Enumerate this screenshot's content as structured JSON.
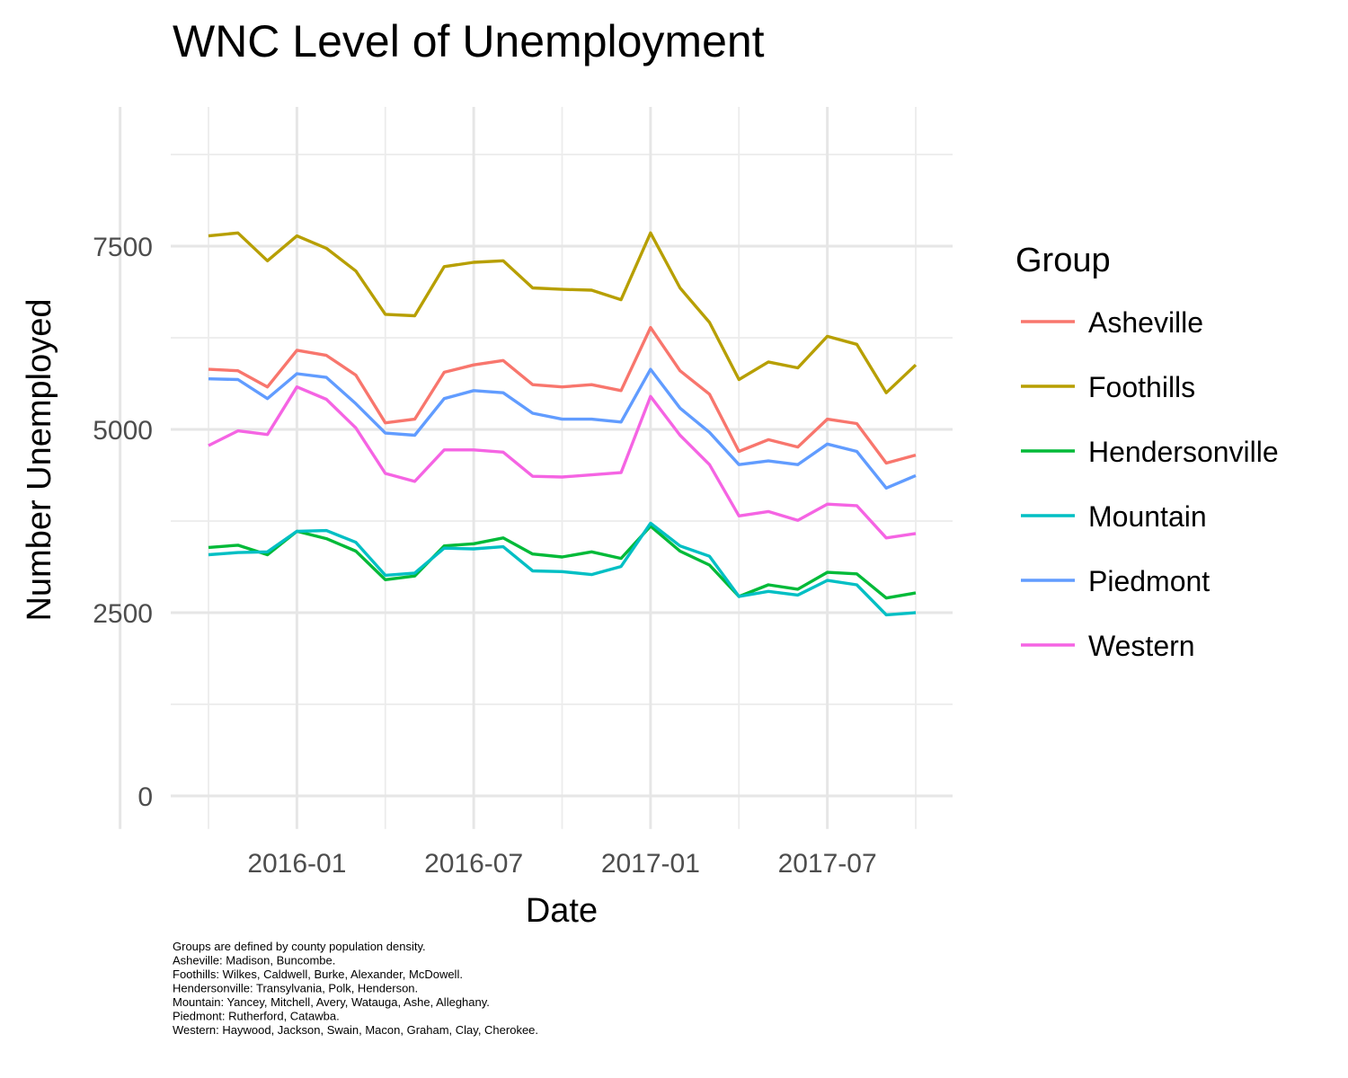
{
  "chart_data": {
    "type": "line",
    "title": "WNC Level of Unemployment",
    "xlabel": "Date",
    "ylabel": "Number Unemployed",
    "ylim": [
      -450,
      9400
    ],
    "y_ticks": [
      0,
      2500,
      5000,
      7500
    ],
    "x_ticks": [
      "2016-01",
      "2016-07",
      "2017-01",
      "2017-07"
    ],
    "grid": true,
    "legend": {
      "title": "Group",
      "position": "right"
    },
    "x": [
      "2015-10",
      "2015-11",
      "2015-12",
      "2016-01",
      "2016-02",
      "2016-03",
      "2016-04",
      "2016-05",
      "2016-06",
      "2016-07",
      "2016-08",
      "2016-09",
      "2016-10",
      "2016-11",
      "2016-12",
      "2017-01",
      "2017-02",
      "2017-03",
      "2017-04",
      "2017-05",
      "2017-06",
      "2017-07",
      "2017-08",
      "2017-09",
      "2017-10"
    ],
    "series": [
      {
        "name": "Asheville",
        "color": "#F8766D",
        "values": [
          5820,
          5800,
          5580,
          6080,
          6010,
          5740,
          5090,
          5140,
          5780,
          5880,
          5940,
          5610,
          5580,
          5610,
          5530,
          6390,
          5800,
          5480,
          4700,
          4860,
          4760,
          5140,
          5080,
          4540,
          4650
        ]
      },
      {
        "name": "Foothills",
        "color": "#B79F00",
        "values": [
          7640,
          7680,
          7300,
          7640,
          7470,
          7160,
          6570,
          6550,
          7220,
          7280,
          7300,
          6930,
          6910,
          6900,
          6770,
          7680,
          6930,
          6460,
          5680,
          5920,
          5840,
          6270,
          6160,
          5500,
          5880
        ]
      },
      {
        "name": "Hendersonville",
        "color": "#00BA38",
        "values": [
          3390,
          3420,
          3290,
          3610,
          3510,
          3340,
          2950,
          3000,
          3410,
          3440,
          3520,
          3300,
          3260,
          3330,
          3240,
          3680,
          3340,
          3150,
          2720,
          2880,
          2820,
          3050,
          3030,
          2700,
          2770
        ]
      },
      {
        "name": "Mountain",
        "color": "#00BFC4",
        "values": [
          3290,
          3320,
          3330,
          3610,
          3620,
          3460,
          3010,
          3040,
          3380,
          3370,
          3400,
          3070,
          3060,
          3020,
          3130,
          3720,
          3410,
          3270,
          2720,
          2790,
          2740,
          2940,
          2880,
          2470,
          2500
        ]
      },
      {
        "name": "Piedmont",
        "color": "#619CFF",
        "values": [
          5690,
          5680,
          5420,
          5760,
          5710,
          5350,
          4950,
          4920,
          5420,
          5530,
          5500,
          5220,
          5140,
          5140,
          5100,
          5820,
          5290,
          4960,
          4520,
          4570,
          4520,
          4800,
          4700,
          4200,
          4370
        ]
      },
      {
        "name": "Western",
        "color": "#F564E3",
        "values": [
          4780,
          4980,
          4930,
          5580,
          5410,
          5020,
          4400,
          4290,
          4720,
          4720,
          4690,
          4360,
          4350,
          4380,
          4410,
          5450,
          4920,
          4520,
          3820,
          3880,
          3760,
          3980,
          3960,
          3520,
          3580
        ]
      }
    ]
  },
  "caption": [
    "Groups are defined by county population density.",
    "Asheville: Madison, Buncombe.",
    "Foothills: Wilkes, Caldwell, Burke, Alexander, McDowell.",
    "Hendersonville: Transylvania, Polk, Henderson.",
    "Mountain: Yancey, Mitchell, Avery, Watauga, Ashe, Alleghany.",
    "Piedmont: Rutherford, Catawba.",
    "Western: Haywood, Jackson, Swain, Macon, Graham, Clay, Cherokee."
  ]
}
